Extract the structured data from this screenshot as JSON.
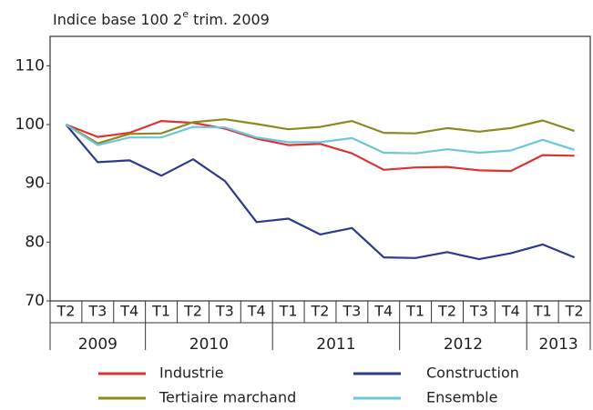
{
  "chart_data": {
    "type": "line",
    "title": {
      "before": "Indice base 100 2",
      "sup": "e",
      "after": " trim. 2009"
    },
    "categories": [
      "T2",
      "T3",
      "T4",
      "T1",
      "T2",
      "T3",
      "T4",
      "T1",
      "T2",
      "T3",
      "T4",
      "T1",
      "T2",
      "T3",
      "T4",
      "T1",
      "T2"
    ],
    "years": [
      "2009",
      "2009",
      "2009",
      "2010",
      "2010",
      "2010",
      "2010",
      "2011",
      "2011",
      "2011",
      "2011",
      "2012",
      "2012",
      "2012",
      "2012",
      "2013",
      "2013"
    ],
    "ylim": [
      70,
      115
    ],
    "yticks": [
      70,
      80,
      90,
      100,
      110
    ],
    "series": [
      {
        "name": "Industrie",
        "color": "#e03030",
        "values": [
          100,
          97.9,
          98.6,
          100.6,
          100.3,
          99.3,
          97.6,
          96.5,
          96.7,
          95.1,
          92.3,
          92.7,
          92.8,
          92.2,
          92.1,
          94.8,
          94.7
        ]
      },
      {
        "name": "Construction",
        "color": "#2e3a8c",
        "values": [
          100,
          93.6,
          93.9,
          91.3,
          94.1,
          90.4,
          83.4,
          84.0,
          81.3,
          82.4,
          77.4,
          77.3,
          78.3,
          77.1,
          78.1,
          79.6,
          77.4
        ]
      },
      {
        "name": "Tertiaire marchand",
        "color": "#8a8a1e",
        "values": [
          100,
          96.8,
          98.4,
          98.5,
          100.4,
          100.9,
          100.1,
          99.2,
          99.6,
          100.6,
          98.6,
          98.5,
          99.4,
          98.8,
          99.4,
          100.7,
          98.9
        ]
      },
      {
        "name": "Ensemble",
        "color": "#6ec6d8",
        "values": [
          100,
          96.5,
          97.8,
          97.8,
          99.6,
          99.5,
          97.8,
          97.0,
          97.0,
          97.7,
          95.2,
          95.1,
          95.8,
          95.2,
          95.6,
          97.4,
          95.7
        ]
      }
    ]
  }
}
